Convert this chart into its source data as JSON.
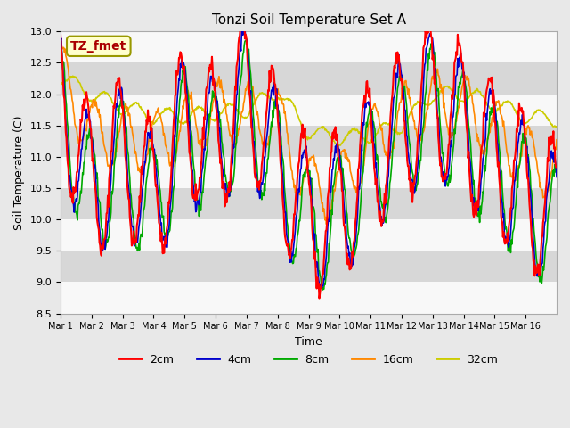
{
  "title": "Tonzi Soil Temperature Set A",
  "xlabel": "Time",
  "ylabel": "Soil Temperature (C)",
  "ylim": [
    8.5,
    13.0
  ],
  "annotation": "TZ_fmet",
  "annotation_color": "#aa0000",
  "annotation_bg": "#ffffcc",
  "line_colors": {
    "2cm": "#ff0000",
    "4cm": "#0000cc",
    "8cm": "#00aa00",
    "16cm": "#ff8800",
    "32cm": "#cccc00"
  },
  "xtick_labels": [
    "Mar 1",
    "Mar 2",
    "Mar 3",
    "Mar 4",
    "Mar 5",
    "Mar 6",
    "Mar 7",
    "Mar 8",
    "Mar 9",
    "Mar 10",
    "Mar 11",
    "Mar 12",
    "Mar 13",
    "Mar 14",
    "Mar 15",
    "Mar 16"
  ],
  "ytick_vals": [
    8.5,
    9.0,
    9.5,
    10.0,
    10.5,
    11.0,
    11.5,
    12.0,
    12.5,
    13.0
  ],
  "n_days": 16,
  "pts_per_day": 48
}
